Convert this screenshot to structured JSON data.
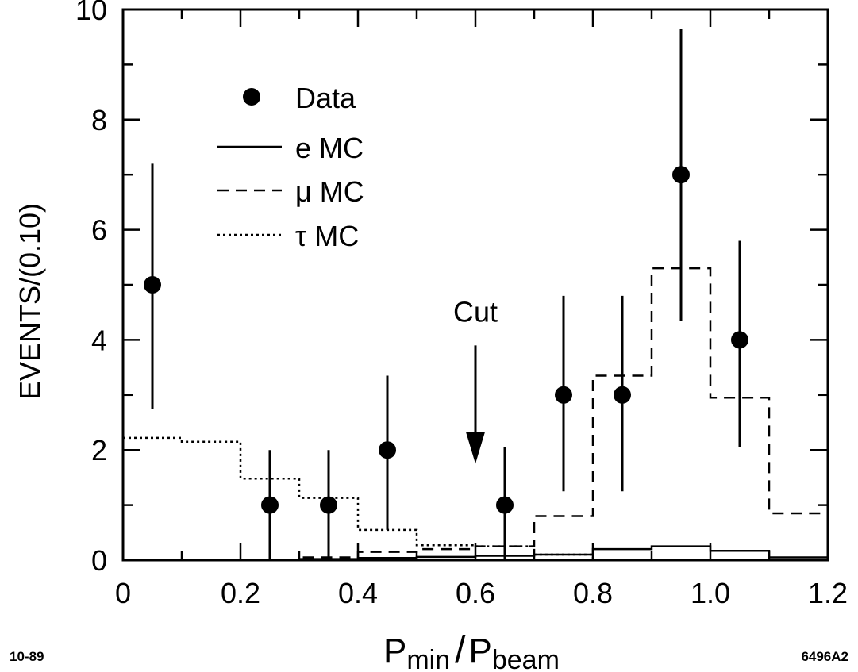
{
  "chart_data": {
    "type": "scatter",
    "xlabel_main": "P",
    "xlabel_sub1": "min",
    "xlabel_slash": "/",
    "xlabel_main2": "P",
    "xlabel_sub2": "beam",
    "ylabel": "EVENTS/(0.10)",
    "xlim": [
      0,
      1.2
    ],
    "ylim": [
      0,
      10
    ],
    "x_ticks": [
      "0",
      "0.2",
      "0.4",
      "0.6",
      "0.8",
      "1.0",
      "1.2"
    ],
    "y_ticks": [
      "0",
      "2",
      "4",
      "6",
      "8",
      "10"
    ],
    "grid": false,
    "legend_position": "top-left",
    "series": [
      {
        "name": "Data",
        "style": "points-with-errors",
        "points": [
          {
            "x": 0.05,
            "y": 5,
            "ylo": 2.75,
            "yhi": 7.2
          },
          {
            "x": 0.25,
            "y": 1,
            "ylo": 0.0,
            "yhi": 2.0
          },
          {
            "x": 0.35,
            "y": 1,
            "ylo": 0.0,
            "yhi": 2.0
          },
          {
            "x": 0.45,
            "y": 2,
            "ylo": 0.55,
            "yhi": 3.35
          },
          {
            "x": 0.65,
            "y": 1,
            "ylo": 0.0,
            "yhi": 2.05
          },
          {
            "x": 0.75,
            "y": 3,
            "ylo": 1.25,
            "yhi": 4.8
          },
          {
            "x": 0.85,
            "y": 3,
            "ylo": 1.25,
            "yhi": 4.8
          },
          {
            "x": 0.95,
            "y": 7,
            "ylo": 4.35,
            "yhi": 9.65
          },
          {
            "x": 1.05,
            "y": 4,
            "ylo": 2.05,
            "yhi": 5.8
          }
        ]
      },
      {
        "name": "e MC",
        "style": "solid-step",
        "edges": [
          0,
          0.1,
          0.2,
          0.3,
          0.4,
          0.5,
          0.6,
          0.7,
          0.8,
          0.9,
          1.0,
          1.1,
          1.2
        ],
        "values": [
          0,
          0,
          0.0,
          0.02,
          0.04,
          0.06,
          0.08,
          0.1,
          0.2,
          0.25,
          0.17,
          0.05
        ]
      },
      {
        "name": "μ MC",
        "style": "dashed-step",
        "edges": [
          0,
          0.1,
          0.2,
          0.3,
          0.4,
          0.5,
          0.6,
          0.7,
          0.8,
          0.9,
          1.0,
          1.1,
          1.2
        ],
        "values": [
          0,
          0,
          0,
          0.05,
          0.15,
          0.2,
          0.25,
          0.8,
          3.35,
          5.3,
          2.95,
          0.85
        ]
      },
      {
        "name": "τ MC",
        "style": "dotted-step",
        "edges": [
          0,
          0.1,
          0.2,
          0.3,
          0.4,
          0.5,
          0.6,
          0.7,
          0.8,
          0.9,
          1.0,
          1.1,
          1.2
        ],
        "values": [
          2.22,
          2.15,
          1.48,
          1.13,
          0.55,
          0.27,
          0.25,
          0.1,
          0,
          0,
          0,
          0
        ]
      }
    ],
    "annotations": [
      {
        "text": "Cut",
        "x": 0.6,
        "arrow_from_y": 3.9,
        "arrow_to_y": 1.75
      }
    ]
  },
  "legend": {
    "data_label": "Data",
    "e_label": "e MC",
    "mu_label": "μ MC",
    "tau_label": "τ MC"
  },
  "corner": {
    "left": "10-89",
    "right": "6496A2"
  }
}
